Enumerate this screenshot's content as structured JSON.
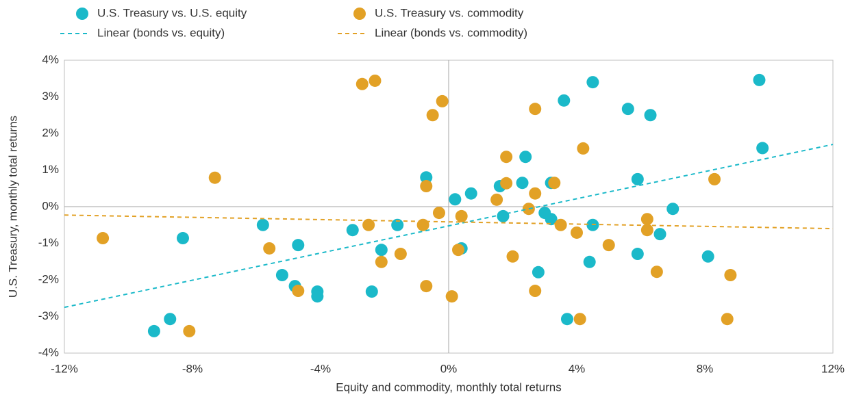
{
  "chart_data": {
    "type": "scatter",
    "xlabel": "Equity and commodity, monthly total returns",
    "ylabel": "U.S. Treasury, monthly total returns",
    "xlim": [
      -12,
      12
    ],
    "ylim": [
      -4,
      4
    ],
    "xticks": [
      {
        "value": -12,
        "label": "-12%"
      },
      {
        "value": -8,
        "label": "-8%"
      },
      {
        "value": -4,
        "label": "-4%"
      },
      {
        "value": 0,
        "label": "0%"
      },
      {
        "value": 4,
        "label": "4%"
      },
      {
        "value": 8,
        "label": "8%"
      },
      {
        "value": 12,
        "label": "12%"
      }
    ],
    "yticks": [
      {
        "value": -4,
        "label": "-4%"
      },
      {
        "value": -3,
        "label": "-3%"
      },
      {
        "value": -2,
        "label": "-2%"
      },
      {
        "value": -1,
        "label": "-1%"
      },
      {
        "value": 0,
        "label": "0%"
      },
      {
        "value": 1,
        "label": "1%"
      },
      {
        "value": 2,
        "label": "2%"
      },
      {
        "value": 3,
        "label": "3%"
      },
      {
        "value": 4,
        "label": "4%"
      }
    ],
    "series": [
      {
        "name": "U.S. Treasury vs. U.S. equity",
        "color": "#1bb9c9",
        "mode": "markers",
        "x": [
          9.7,
          5.6,
          6.3,
          3.6,
          4.5,
          9.8,
          2.4,
          -0.7,
          0.7,
          0.2,
          1.6,
          2.3,
          3.2,
          5.9,
          7.0,
          6.6,
          1.7,
          3.0,
          3.2,
          4.5,
          -5.8,
          -1.6,
          -3.0,
          -2.1,
          0.4,
          -4.7,
          -8.3,
          -5.2,
          -4.8,
          -4.1,
          -4.1,
          -2.4,
          2.8,
          4.4,
          5.9,
          8.1,
          -8.7,
          -9.2,
          3.7
        ],
        "values": [
          3.46,
          2.67,
          2.5,
          2.9,
          3.4,
          1.6,
          1.36,
          0.8,
          0.36,
          0.2,
          0.56,
          0.65,
          0.65,
          0.75,
          -0.06,
          -0.75,
          -0.26,
          -0.17,
          -0.34,
          -0.5,
          -0.5,
          -0.5,
          -0.64,
          -1.18,
          -1.14,
          -1.05,
          -0.86,
          -1.87,
          -2.17,
          -2.32,
          -2.45,
          -2.32,
          -1.79,
          -1.51,
          -1.29,
          -1.36,
          -3.07,
          -3.4,
          -3.07
        ]
      },
      {
        "name": "U.S. Treasury vs. commodity",
        "color": "#e2a126",
        "mode": "markers",
        "x": [
          -2.3,
          -2.7,
          -0.2,
          -0.5,
          2.7,
          4.2,
          1.8,
          -7.3,
          -0.7,
          1.8,
          3.3,
          2.7,
          2.5,
          -0.3,
          0.4,
          1.5,
          -2.5,
          -0.8,
          3.5,
          6.2,
          6.2,
          4.0,
          5.0,
          8.3,
          -10.8,
          -5.6,
          -1.5,
          0.3,
          2.0,
          -2.1,
          6.5,
          8.8,
          -0.7,
          -4.7,
          0.1,
          2.7,
          4.1,
          8.7,
          -8.1
        ],
        "values": [
          3.44,
          3.35,
          2.88,
          2.5,
          2.67,
          1.59,
          1.36,
          0.79,
          0.56,
          0.64,
          0.65,
          0.36,
          -0.06,
          -0.17,
          -0.26,
          0.19,
          -0.5,
          -0.5,
          -0.5,
          -0.34,
          -0.64,
          -0.71,
          -1.05,
          0.75,
          -0.86,
          -1.14,
          -1.29,
          -1.18,
          -1.36,
          -1.51,
          -1.78,
          -1.87,
          -2.17,
          -2.3,
          -2.45,
          -2.3,
          -3.07,
          -3.07,
          -3.4
        ]
      },
      {
        "name": "Linear (bonds vs. equity)",
        "color": "#1bb9c9",
        "mode": "dashed-line",
        "x": [
          -12,
          12
        ],
        "values": [
          -2.75,
          1.7
        ]
      },
      {
        "name": "Linear (bonds vs. commodity)",
        "color": "#e2a126",
        "mode": "dashed-line",
        "x": [
          -12,
          12
        ],
        "values": [
          -0.23,
          -0.6
        ]
      }
    ]
  }
}
